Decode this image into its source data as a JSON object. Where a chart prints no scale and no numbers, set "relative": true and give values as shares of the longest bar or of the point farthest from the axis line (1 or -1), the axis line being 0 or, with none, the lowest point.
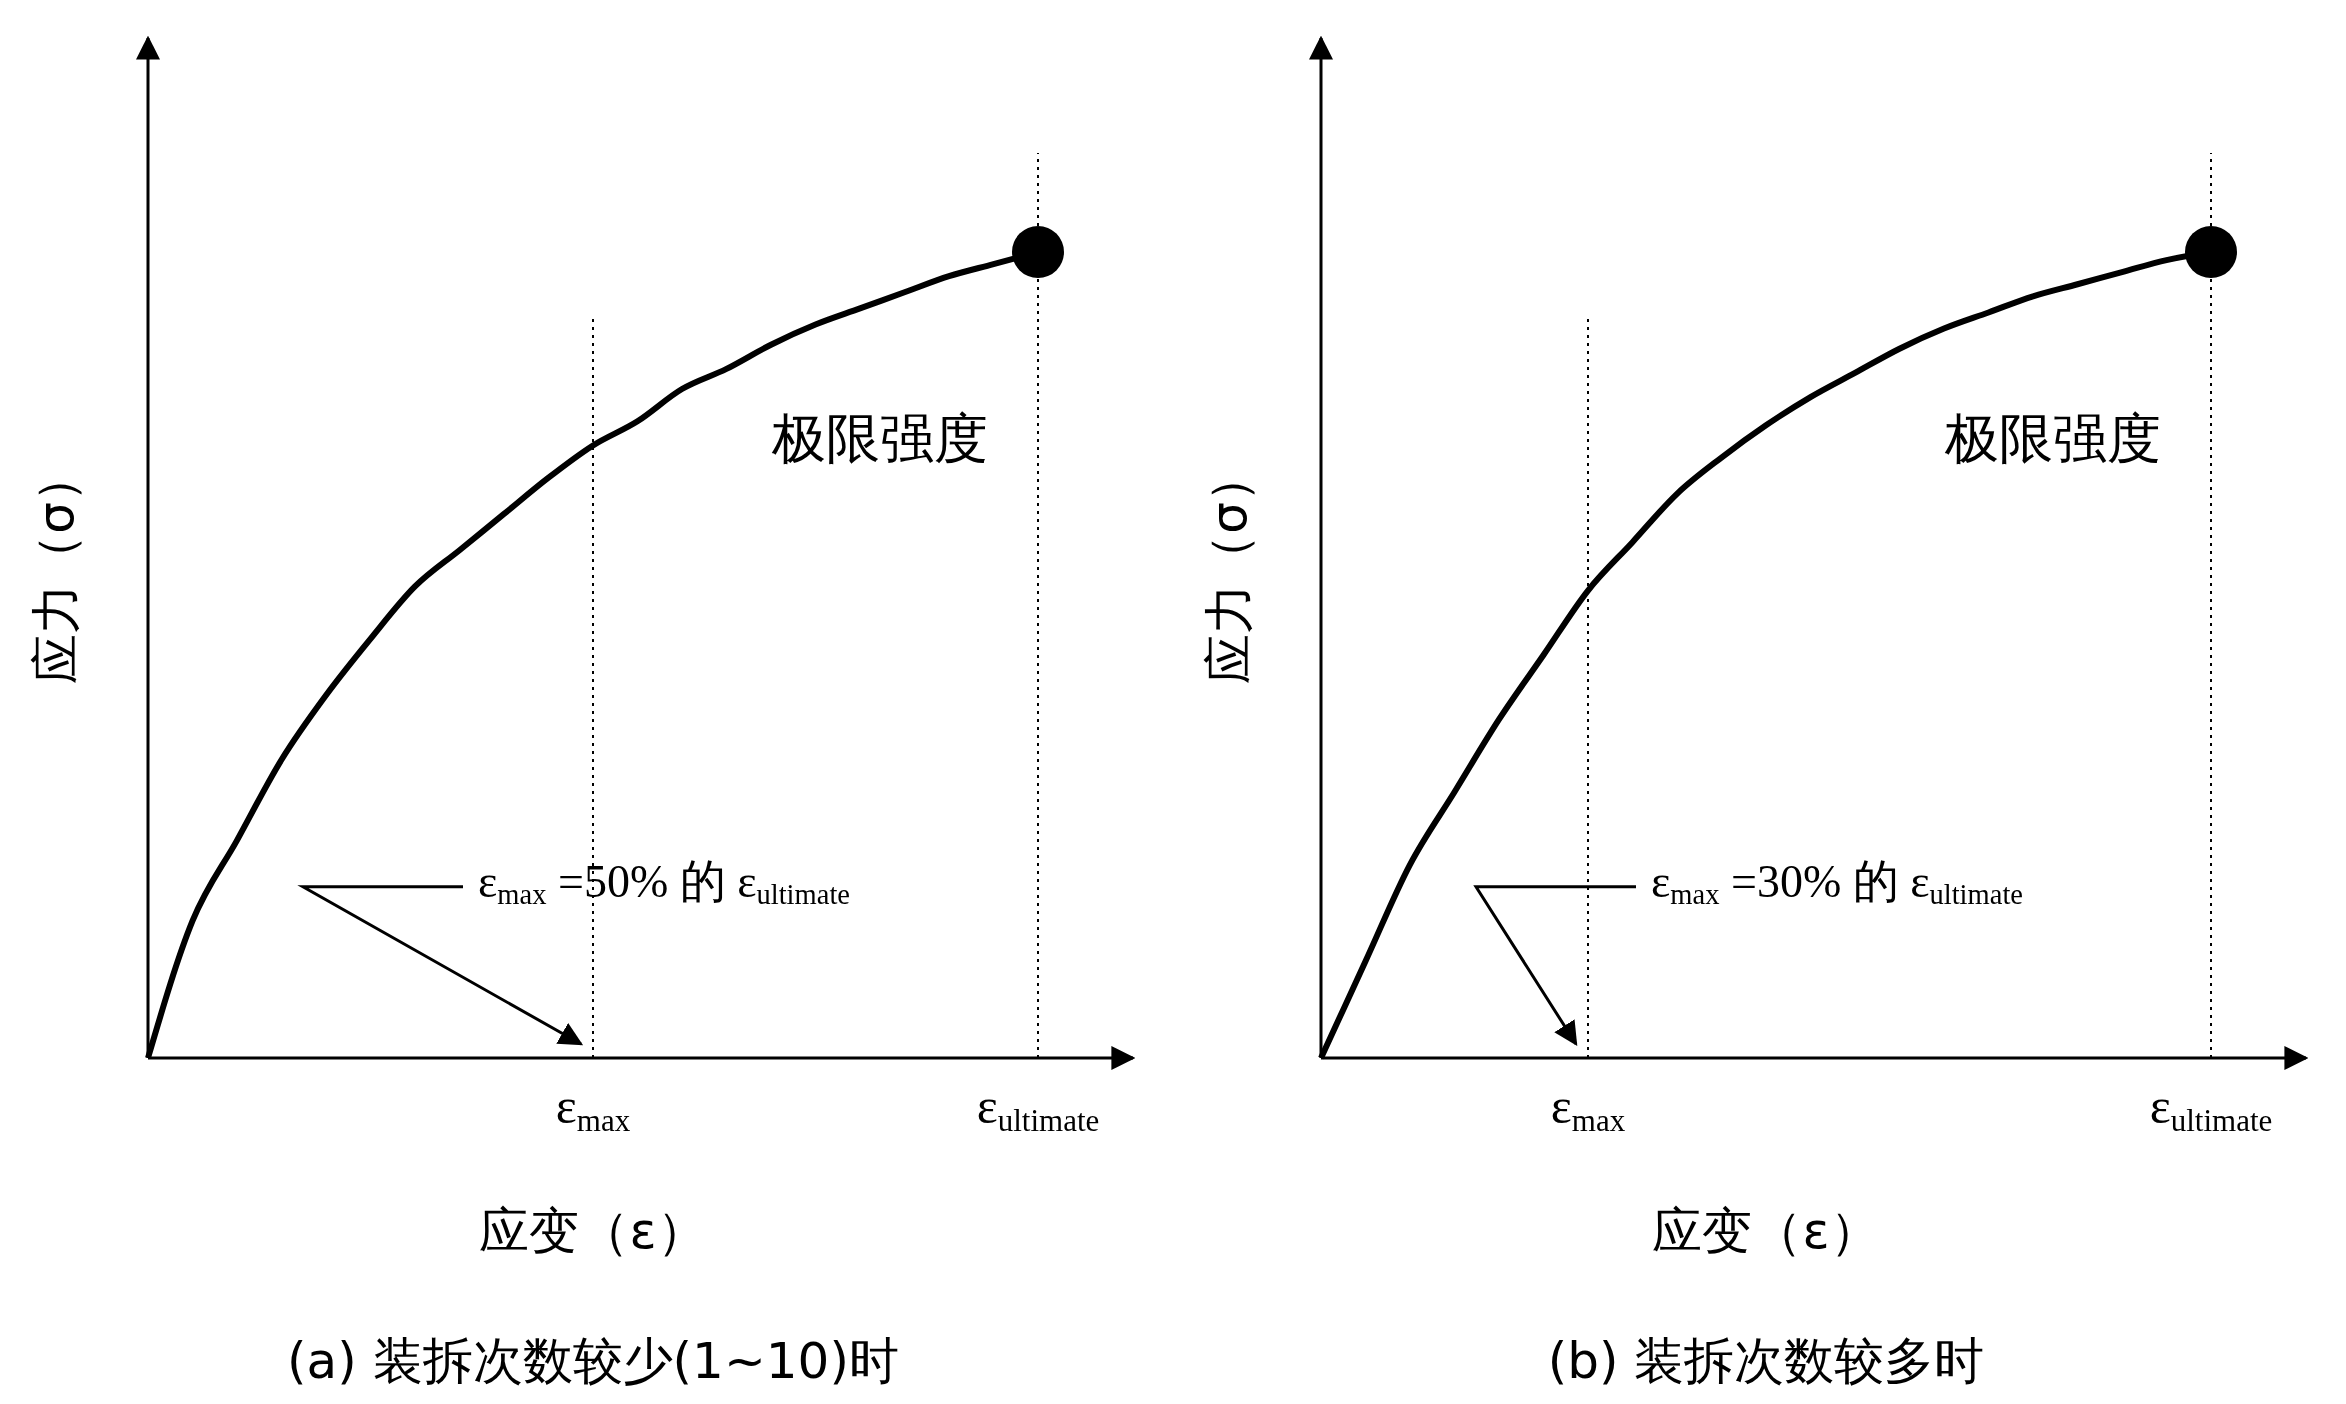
{
  "chart_data": [
    {
      "type": "line",
      "title": "(a) 装拆次数较少(1~10)时",
      "xlabel": "应变（ε）",
      "ylabel": "应力（σ）",
      "relative": true,
      "line_style": "solid",
      "categories": [
        null,
        null,
        null,
        null,
        null,
        null,
        null,
        null,
        null,
        null,
        "ε$_{max}$",
        null,
        null,
        null,
        null,
        null,
        null,
        null,
        null,
        null,
        "ε$_{ultimate}$"
      ],
      "ref_lines": [
        {
          "axis": "x",
          "value": "ε$_{max}$",
          "line_style": "dotted",
          "color": "#000000"
        },
        {
          "axis": "x",
          "value": "ε$_{ultimate}$",
          "line_style": "dotted",
          "color": "#000000"
        }
      ],
      "annotations": [
        "极限强度",
        "ε$_{max}$ =50% 的 ε$_{ultimate}$"
      ],
      "series": [
        {
          "type": "line",
          "color": "#000000",
          "marker": "none",
          "values": [
            0,
            0.17,
            0.27,
            0.37,
            0.45,
            0.52,
            0.585,
            0.63,
            0.675,
            0.72,
            0.76,
            0.79,
            0.83,
            0.855,
            0.885,
            0.91,
            0.93,
            0.95,
            0.97,
            0.985,
            1
          ]
        },
        {
          "type": "scatter",
          "color": "#000000",
          "marker": "circle",
          "x": [
            "ε$_{ultimate}$"
          ],
          "values": [
            1
          ]
        }
      ]
    },
    {
      "type": "line",
      "title": "(b) 装拆次数较多时",
      "xlabel": "应变（ε）",
      "ylabel": "应力（σ）",
      "relative": true,
      "line_style": "solid",
      "categories": [
        null,
        null,
        null,
        null,
        null,
        null,
        "ε$_{max}$",
        null,
        null,
        null,
        null,
        null,
        null,
        null,
        null,
        null,
        null,
        null,
        null,
        null,
        "ε$_{ultimate}$"
      ],
      "ref_lines": [
        {
          "axis": "x",
          "value": "ε$_{max}$",
          "line_style": "dotted",
          "color": "#000000"
        },
        {
          "axis": "x",
          "value": "ε$_{ultimate}$",
          "line_style": "dotted",
          "color": "#000000"
        }
      ],
      "annotations": [
        "极限强度",
        "ε$_{max}$ =30% 的 ε$_{ultimate}$"
      ],
      "series": [
        {
          "type": "line",
          "color": "#000000",
          "marker": "none",
          "values": [
            0,
            0.12,
            0.24,
            0.33,
            0.42,
            0.5,
            0.58,
            0.64,
            0.7,
            0.745,
            0.785,
            0.82,
            0.85,
            0.88,
            0.905,
            0.925,
            0.945,
            0.96,
            0.975,
            0.99,
            1
          ]
        },
        {
          "type": "scatter",
          "color": "#000000",
          "marker": "circle",
          "x": [
            "ε$_{ultimate}$"
          ],
          "values": [
            1
          ]
        }
      ]
    }
  ]
}
